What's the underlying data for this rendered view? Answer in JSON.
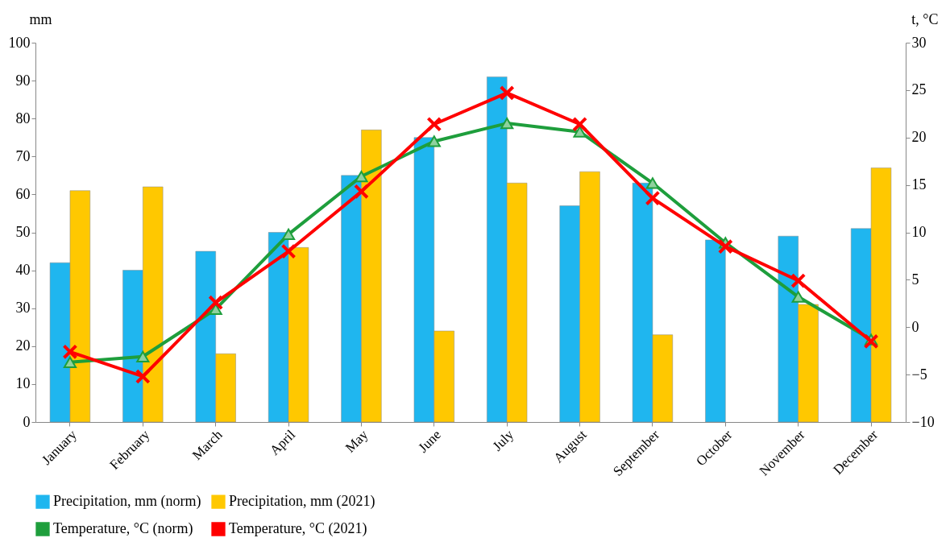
{
  "chart_data": {
    "type": "bar",
    "ylabel": "mm",
    "y2label": "t, °C",
    "categories": [
      "January",
      "February",
      "March",
      "April",
      "May",
      "June",
      "July",
      "August",
      "September",
      "October",
      "November",
      "December"
    ],
    "series": [
      {
        "name": "Precipitation, mm (norm)",
        "color": "#1fb6ef",
        "values": [
          42,
          40,
          45,
          50,
          65,
          75,
          91,
          57,
          63,
          48,
          49,
          51
        ]
      },
      {
        "name": "Precipitation, mm (2021)",
        "color": "#ffc800",
        "values": [
          61,
          62,
          18,
          46,
          77,
          24,
          63,
          66,
          23,
          null,
          31,
          67
        ]
      },
      {
        "name": "Temperature, °C  (norm)",
        "color": "#1e9e3c",
        "type": "line",
        "axis": "y2",
        "marker": "triangle",
        "values": [
          -3.7,
          -3.1,
          1.9,
          9.8,
          15.9,
          19.6,
          21.5,
          20.6,
          15.2,
          8.9,
          3.2,
          -1.3
        ]
      },
      {
        "name": "Temperature, °C (2021)",
        "color": "#ff0000",
        "type": "line",
        "axis": "y2",
        "marker": "cross",
        "values": [
          -2.6,
          -5.2,
          2.6,
          8.0,
          14.3,
          21.4,
          24.7,
          21.4,
          13.6,
          8.5,
          4.9,
          -1.5
        ]
      }
    ],
    "ylim": [
      0,
      100
    ],
    "yticks": [
      0,
      10,
      20,
      30,
      40,
      50,
      60,
      70,
      80,
      90,
      100
    ],
    "y2lim": [
      -10,
      30
    ],
    "y2ticks": [
      -10,
      -5,
      0,
      5,
      10,
      15,
      20,
      25,
      30
    ],
    "legend": "bottom"
  }
}
